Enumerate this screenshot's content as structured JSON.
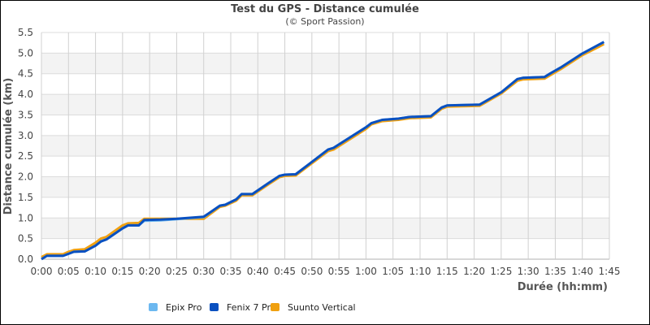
{
  "chart_data": {
    "type": "line",
    "title": "Test du GPS - Distance cumulée",
    "subtitle": "(© Sport Passion)",
    "xlabel": "Durée (hh:mm)",
    "ylabel": "Distance cumulée (km)",
    "xlim": [
      0,
      105
    ],
    "ylim": [
      0,
      5.5
    ],
    "x_ticks": [
      "0:00",
      "0:05",
      "0:10",
      "0:15",
      "0:20",
      "0:25",
      "0:30",
      "0:35",
      "0:40",
      "0:45",
      "0:50",
      "0:55",
      "1:00",
      "1:05",
      "1:10",
      "1:15",
      "1:20",
      "1:25",
      "1:30",
      "1:35",
      "1:40",
      "1:45"
    ],
    "y_ticks": [
      "0.0",
      "0.5",
      "1.0",
      "1.5",
      "2.0",
      "2.5",
      "3.0",
      "3.5",
      "4.0",
      "4.5",
      "5.0",
      "5.5"
    ],
    "grid": true,
    "legend_position": "bottom-left",
    "series": [
      {
        "name": "Epix Pro",
        "color": "#6cb8f0",
        "points": [
          [
            0,
            0
          ],
          [
            1,
            0.08
          ],
          [
            4,
            0.08
          ],
          [
            5,
            0.13
          ],
          [
            6,
            0.18
          ],
          [
            8,
            0.19
          ],
          [
            10,
            0.33
          ],
          [
            11,
            0.43
          ],
          [
            12,
            0.48
          ],
          [
            15,
            0.75
          ],
          [
            16,
            0.82
          ],
          [
            18,
            0.82
          ],
          [
            19,
            0.93
          ],
          [
            22,
            0.94
          ],
          [
            25,
            0.97
          ],
          [
            30,
            1.02
          ],
          [
            33,
            1.3
          ],
          [
            34,
            1.32
          ],
          [
            36,
            1.45
          ],
          [
            37,
            1.58
          ],
          [
            39,
            1.58
          ],
          [
            42,
            1.85
          ],
          [
            44,
            2.02
          ],
          [
            45,
            2.05
          ],
          [
            47,
            2.06
          ],
          [
            53,
            2.66
          ],
          [
            54,
            2.7
          ],
          [
            60,
            3.2
          ],
          [
            61,
            3.3
          ],
          [
            63,
            3.38
          ],
          [
            66,
            3.41
          ],
          [
            68,
            3.45
          ],
          [
            72,
            3.47
          ],
          [
            74,
            3.68
          ],
          [
            75,
            3.73
          ],
          [
            81,
            3.75
          ],
          [
            85,
            4.05
          ],
          [
            88,
            4.37
          ],
          [
            89,
            4.4
          ],
          [
            93,
            4.42
          ],
          [
            94,
            4.5
          ],
          [
            96,
            4.65
          ],
          [
            100,
            4.99
          ],
          [
            103,
            5.2
          ],
          [
            104,
            5.27
          ]
        ]
      },
      {
        "name": "Fenix 7 Pro",
        "color": "#0a50c0",
        "points": [
          [
            0,
            0
          ],
          [
            1,
            0.08
          ],
          [
            4,
            0.08
          ],
          [
            5,
            0.13
          ],
          [
            6,
            0.18
          ],
          [
            8,
            0.19
          ],
          [
            10,
            0.33
          ],
          [
            11,
            0.43
          ],
          [
            12,
            0.48
          ],
          [
            15,
            0.75
          ],
          [
            16,
            0.82
          ],
          [
            18,
            0.82
          ],
          [
            19,
            0.95
          ],
          [
            22,
            0.96
          ],
          [
            25,
            0.98
          ],
          [
            27,
            1.0
          ],
          [
            29,
            1.02
          ],
          [
            30,
            1.03
          ],
          [
            33,
            1.3
          ],
          [
            34,
            1.32
          ],
          [
            36,
            1.45
          ],
          [
            37,
            1.58
          ],
          [
            39,
            1.58
          ],
          [
            42,
            1.85
          ],
          [
            44,
            2.02
          ],
          [
            45,
            2.05
          ],
          [
            47,
            2.06
          ],
          [
            53,
            2.66
          ],
          [
            54,
            2.7
          ],
          [
            60,
            3.2
          ],
          [
            61,
            3.3
          ],
          [
            63,
            3.38
          ],
          [
            66,
            3.41
          ],
          [
            68,
            3.45
          ],
          [
            72,
            3.47
          ],
          [
            74,
            3.68
          ],
          [
            75,
            3.73
          ],
          [
            81,
            3.75
          ],
          [
            85,
            4.05
          ],
          [
            88,
            4.37
          ],
          [
            89,
            4.4
          ],
          [
            93,
            4.42
          ],
          [
            94,
            4.5
          ],
          [
            96,
            4.65
          ],
          [
            100,
            4.99
          ],
          [
            103,
            5.2
          ],
          [
            104,
            5.27
          ]
        ]
      },
      {
        "name": "Suunto Vertical",
        "color": "#f0a010",
        "points": [
          [
            0,
            0.05
          ],
          [
            1,
            0.12
          ],
          [
            4,
            0.12
          ],
          [
            5,
            0.18
          ],
          [
            6,
            0.22
          ],
          [
            8,
            0.24
          ],
          [
            10,
            0.4
          ],
          [
            11,
            0.5
          ],
          [
            12,
            0.54
          ],
          [
            15,
            0.82
          ],
          [
            16,
            0.87
          ],
          [
            18,
            0.88
          ],
          [
            19,
            0.98
          ],
          [
            30,
            0.98
          ],
          [
            33,
            1.27
          ],
          [
            34,
            1.3
          ],
          [
            36,
            1.42
          ],
          [
            37,
            1.55
          ],
          [
            39,
            1.55
          ],
          [
            42,
            1.82
          ],
          [
            44,
            1.99
          ],
          [
            45,
            2.02
          ],
          [
            47,
            2.03
          ],
          [
            53,
            2.62
          ],
          [
            54,
            2.66
          ],
          [
            60,
            3.16
          ],
          [
            61,
            3.27
          ],
          [
            63,
            3.35
          ],
          [
            66,
            3.38
          ],
          [
            68,
            3.42
          ],
          [
            72,
            3.44
          ],
          [
            74,
            3.65
          ],
          [
            75,
            3.7
          ],
          [
            81,
            3.72
          ],
          [
            85,
            4.02
          ],
          [
            88,
            4.33
          ],
          [
            89,
            4.36
          ],
          [
            93,
            4.38
          ],
          [
            94,
            4.46
          ],
          [
            96,
            4.61
          ],
          [
            100,
            4.95
          ],
          [
            103,
            5.15
          ],
          [
            104,
            5.22
          ]
        ]
      }
    ]
  }
}
